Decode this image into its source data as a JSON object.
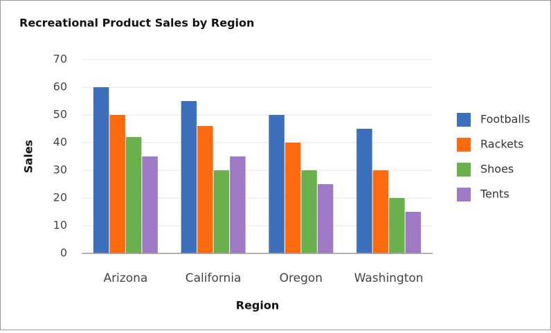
{
  "chart_data": {
    "type": "bar",
    "title": "Recreational Product Sales by Region",
    "x_label": "Region",
    "y_label": "Sales",
    "categories": [
      "Arizona",
      "California",
      "Oregon",
      "Washington"
    ],
    "series": [
      {
        "name": "Footballs",
        "color": "#3d6fbd",
        "values": [
          60,
          55,
          50,
          45
        ]
      },
      {
        "name": "Rackets",
        "color": "#fc6a0d",
        "values": [
          50,
          46,
          40,
          30
        ]
      },
      {
        "name": "Shoes",
        "color": "#6ab04c",
        "values": [
          42,
          30,
          30,
          20
        ]
      },
      {
        "name": "Tents",
        "color": "#9e79c5",
        "values": [
          35,
          35,
          25,
          15
        ]
      }
    ],
    "ylim": [
      0,
      70
    ],
    "yticks": [
      0,
      10,
      20,
      30,
      40,
      50,
      60,
      70
    ],
    "grid": true,
    "legend": "right"
  }
}
